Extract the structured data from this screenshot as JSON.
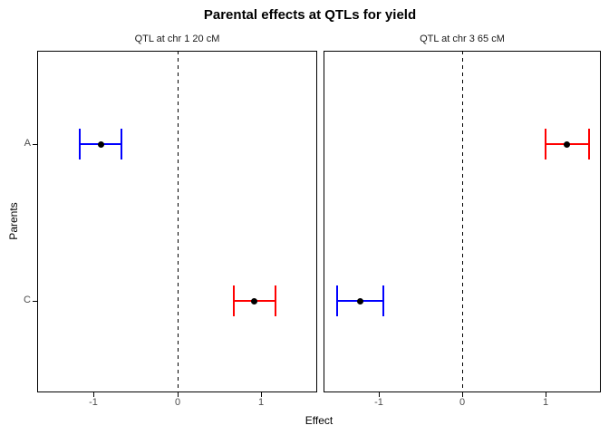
{
  "title": "Parental effects at QTLs for yield",
  "chart_data": {
    "type": "scatter",
    "subtype": "point-with-errorbar, 2 facets, horizontal CI bars",
    "title": "Parental effects at QTLs for yield",
    "xlabel": "Effect",
    "ylabel": "Parents",
    "categories": [
      "A",
      "C"
    ],
    "x_ticks": [
      "-1",
      "0",
      "1"
    ],
    "x_tick_values": [
      -1,
      0,
      1
    ],
    "xlim": [
      -1.67,
      1.67
    ],
    "grid": false,
    "legend": false,
    "reference_line": {
      "x": 0,
      "style": "dashed",
      "color": "#000000"
    },
    "point_color": "#000000",
    "tick_label_color": "#4d4d4d",
    "colors": {
      "blue": "#0000FF",
      "red": "#FF0000"
    },
    "facets": [
      {
        "label": "QTL at chr 1 20 cM",
        "points": [
          {
            "category": "A",
            "effect": -0.91,
            "ci_low": -1.16,
            "ci_high": -0.67,
            "color": "#0000FF"
          },
          {
            "category": "C",
            "effect": 0.92,
            "ci_low": 0.68,
            "ci_high": 1.17,
            "color": "#FF0000"
          }
        ]
      },
      {
        "label": "QTL at chr 3 65 cM",
        "points": [
          {
            "category": "A",
            "effect": 1.26,
            "ci_low": 1.0,
            "ci_high": 1.53,
            "color": "#FF0000"
          },
          {
            "category": "C",
            "effect": -1.23,
            "ci_low": -1.51,
            "ci_high": -0.95,
            "color": "#0000FF"
          }
        ]
      }
    ]
  }
}
